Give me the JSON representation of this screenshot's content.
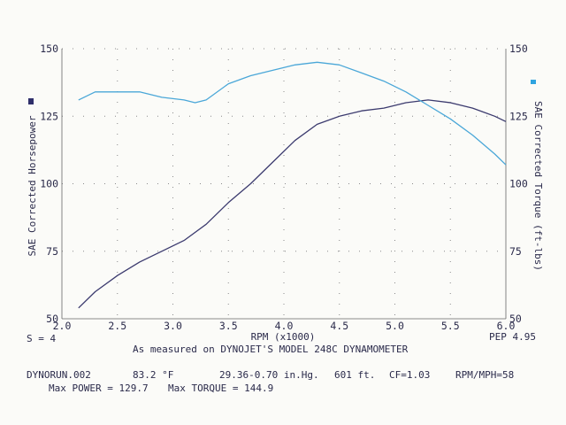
{
  "chart_data": {
    "type": "line",
    "xlabel": "RPM (x1000)",
    "ylabel_left": "SAE Corrected Horsepower",
    "ylabel_right": "SAE Corrected Torque (ft-lbs)",
    "xlim": [
      2.0,
      6.0
    ],
    "ylim": [
      50,
      150
    ],
    "x_ticks": [
      "2.0",
      "2.5",
      "3.0",
      "3.5",
      "4.0",
      "4.5",
      "5.0",
      "5.5",
      "6.0"
    ],
    "y_ticks_left": [
      "150",
      "125",
      "100",
      "75",
      "50"
    ],
    "y_ticks_right": [
      "150",
      "125",
      "100",
      "75",
      "50"
    ],
    "grid": true,
    "series": [
      {
        "name": "Horsepower",
        "color": "#3b3a6e",
        "x": [
          2.15,
          2.3,
          2.5,
          2.7,
          2.9,
          3.1,
          3.3,
          3.5,
          3.7,
          3.9,
          4.1,
          4.3,
          4.5,
          4.7,
          4.9,
          5.1,
          5.3,
          5.5,
          5.7,
          5.9,
          6.0
        ],
        "y": [
          54,
          60,
          66,
          71,
          75,
          79,
          85,
          93,
          100,
          108,
          116,
          122,
          125,
          127,
          128,
          130,
          131,
          130,
          128,
          125,
          123
        ]
      },
      {
        "name": "Torque",
        "color": "#4aa7d8",
        "x": [
          2.15,
          2.3,
          2.5,
          2.7,
          2.9,
          3.1,
          3.2,
          3.3,
          3.5,
          3.7,
          3.9,
          4.1,
          4.3,
          4.5,
          4.7,
          4.9,
          5.1,
          5.3,
          5.5,
          5.7,
          5.9,
          6.0
        ],
        "y": [
          131,
          134,
          134,
          134,
          132,
          131,
          130,
          131,
          137,
          140,
          142,
          144,
          145,
          144,
          141,
          138,
          134,
          129,
          124,
          118,
          111,
          107
        ]
      }
    ]
  },
  "footer": {
    "smoothing": "S = 4",
    "pep": "PEP 4.95",
    "measured_by": "As measured on DYNOJET'S MODEL 248C DYNAMOMETER",
    "run_name": "DYNORUN.002",
    "temperature": "83.2 °F",
    "pressure": "29.36-0.70 in.Hg.",
    "altitude": "601 ft.",
    "correction": "CF=1.03",
    "rpm_mph": "RPM/MPH=58",
    "max_power": "Max POWER = 129.7",
    "max_torque": "Max TORQUE = 144.9"
  },
  "legend": {
    "hp_color": "#2f2f6a",
    "tq_color": "#2fa4e0"
  }
}
